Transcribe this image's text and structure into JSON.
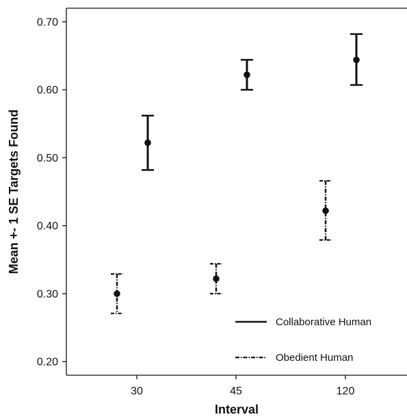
{
  "chart_data": {
    "type": "scatter",
    "subtype": "error-bar",
    "title": "",
    "xlabel": "Interval",
    "ylabel": "Mean +- 1 SE Targets Found",
    "categories": [
      "30",
      "45",
      "120"
    ],
    "ylim": [
      0.18,
      0.72
    ],
    "yticks": [
      "0.20",
      "0.30",
      "0.40",
      "0.50",
      "0.60",
      "0.70"
    ],
    "grid": false,
    "legend_position": "bottom-right",
    "series": [
      {
        "name": "Collaborative Human",
        "line_style": "solid",
        "means": [
          0.522,
          0.622,
          0.644
        ],
        "lower": [
          0.482,
          0.6,
          0.607
        ],
        "upper": [
          0.562,
          0.644,
          0.682
        ]
      },
      {
        "name": "Obedient Human",
        "line_style": "dash-dot",
        "means": [
          0.3,
          0.322,
          0.422
        ],
        "lower": [
          0.271,
          0.3,
          0.379
        ],
        "upper": [
          0.329,
          0.344,
          0.466
        ]
      }
    ],
    "colors": {
      "axis": "#111111",
      "series": "#111111",
      "background": "#ffffff"
    }
  }
}
